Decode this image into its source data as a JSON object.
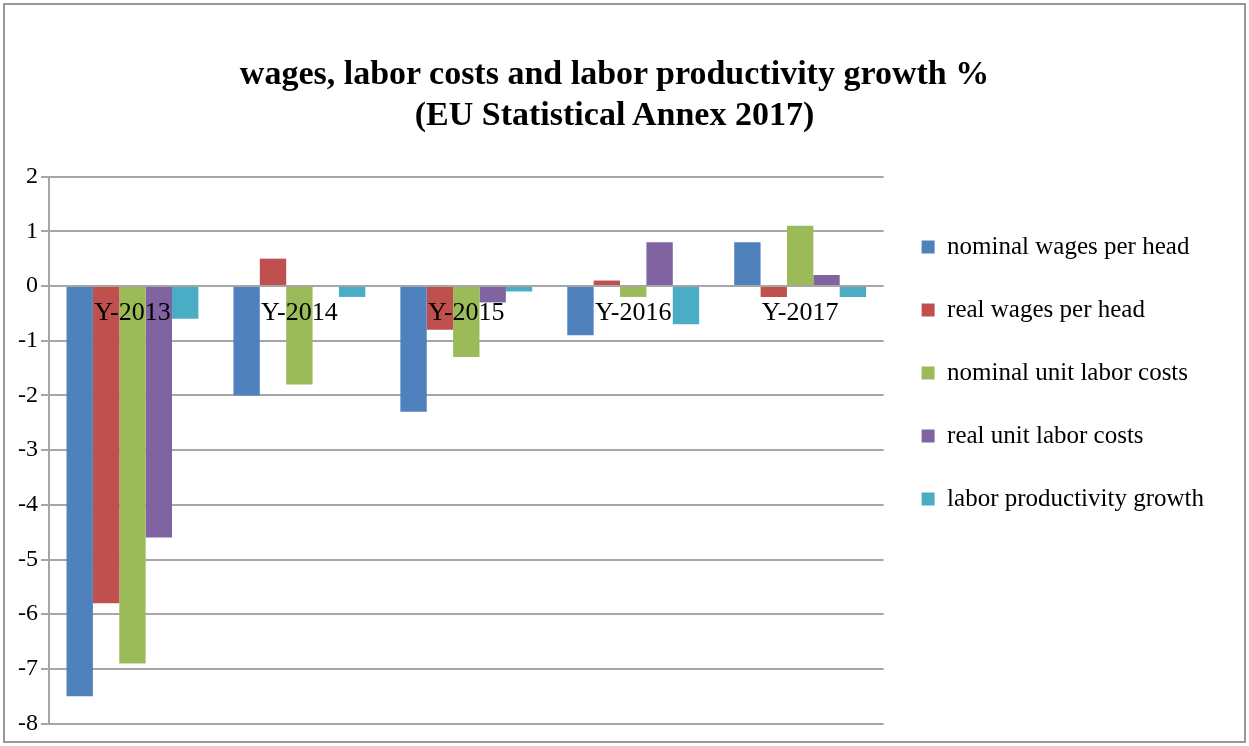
{
  "chart_data": {
    "type": "bar",
    "title": "wages, labor costs and labor productivity growth %\n(EU Statistical Annex 2017)",
    "categories": [
      "Y-2013",
      "Y-2014",
      "Y-2015",
      "Y-2016",
      "Y-2017"
    ],
    "series": [
      {
        "name": "nominal wages per head",
        "color": "#4f81bd",
        "values": [
          -7.5,
          -2.0,
          -2.3,
          -0.9,
          0.8
        ]
      },
      {
        "name": "real wages per head",
        "color": "#c0504d",
        "values": [
          -5.8,
          0.5,
          -0.8,
          0.1,
          -0.2
        ]
      },
      {
        "name": "nominal unit labor costs",
        "color": "#9bbb59",
        "values": [
          -6.9,
          -1.8,
          -1.3,
          -0.2,
          1.1
        ]
      },
      {
        "name": "real unit labor costs",
        "color": "#8064a2",
        "values": [
          -4.6,
          null,
          -0.3,
          0.8,
          0.2
        ]
      },
      {
        "name": "labor productivity growth",
        "color": "#4bacc6",
        "values": [
          -0.6,
          -0.2,
          -0.1,
          -0.7,
          -0.2
        ]
      }
    ],
    "ylim": [
      -8,
      2
    ],
    "yticks": [
      -8,
      -7,
      -6,
      -5,
      -4,
      -3,
      -2,
      -1,
      0,
      1,
      2
    ],
    "grid": "y",
    "legend": "right"
  }
}
